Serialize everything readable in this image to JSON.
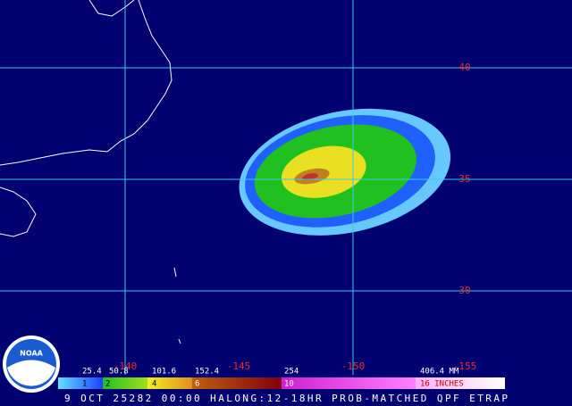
{
  "map": {
    "latitude_labels": [
      "40",
      "35",
      "30"
    ],
    "longitude_labels": [
      "-140",
      "-145",
      "-150",
      "-155"
    ]
  },
  "legend": {
    "mm_labels": [
      "25.4",
      "50.8",
      "101.6",
      "152.4",
      "254",
      "406.4 MM"
    ],
    "inch_labels": [
      "1",
      "2",
      "4",
      "6",
      "10",
      "16 INCHES"
    ]
  },
  "logo": "NOAA",
  "caption": "9 OCT 25282 00:00 HALONG:12-18HR PROB-MATCHED QPF ETRAP"
}
